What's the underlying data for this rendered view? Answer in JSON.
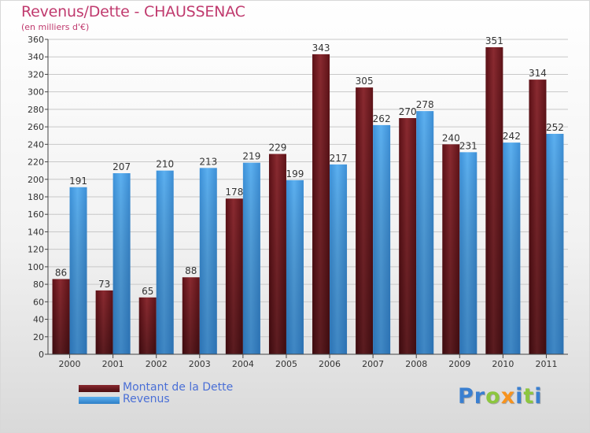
{
  "title": "Revenus/Dette - CHAUSSENAC",
  "subtitle": "(en milliers d'€)",
  "logo": {
    "text": "Proxiti",
    "letters": [
      {
        "ch": "P",
        "color": "#3a7fd0"
      },
      {
        "ch": "r",
        "color": "#3a7fd0"
      },
      {
        "ch": "o",
        "color": "#8cc63f"
      },
      {
        "ch": "x",
        "color": "#f7931e"
      },
      {
        "ch": "i",
        "color": "#3a7fd0"
      },
      {
        "ch": "t",
        "color": "#8cc63f"
      },
      {
        "ch": "i",
        "color": "#3a7fd0"
      }
    ]
  },
  "chart_data": {
    "type": "bar",
    "categories": [
      "2000",
      "2001",
      "2002",
      "2003",
      "2004",
      "2005",
      "2006",
      "2007",
      "2008",
      "2009",
      "2010",
      "2011"
    ],
    "series": [
      {
        "name": "Montant de la Dette",
        "color": "#7a1f24",
        "values": [
          86,
          73,
          65,
          88,
          178,
          229,
          343,
          305,
          270,
          240,
          351,
          314
        ]
      },
      {
        "name": "Revenus",
        "color": "#4aa0e6",
        "values": [
          191,
          207,
          210,
          213,
          219,
          199,
          217,
          262,
          278,
          231,
          242,
          252
        ]
      }
    ],
    "ylim": [
      0,
      360
    ],
    "ytick_step": 20,
    "grid": true,
    "legend": "bottom-left"
  }
}
